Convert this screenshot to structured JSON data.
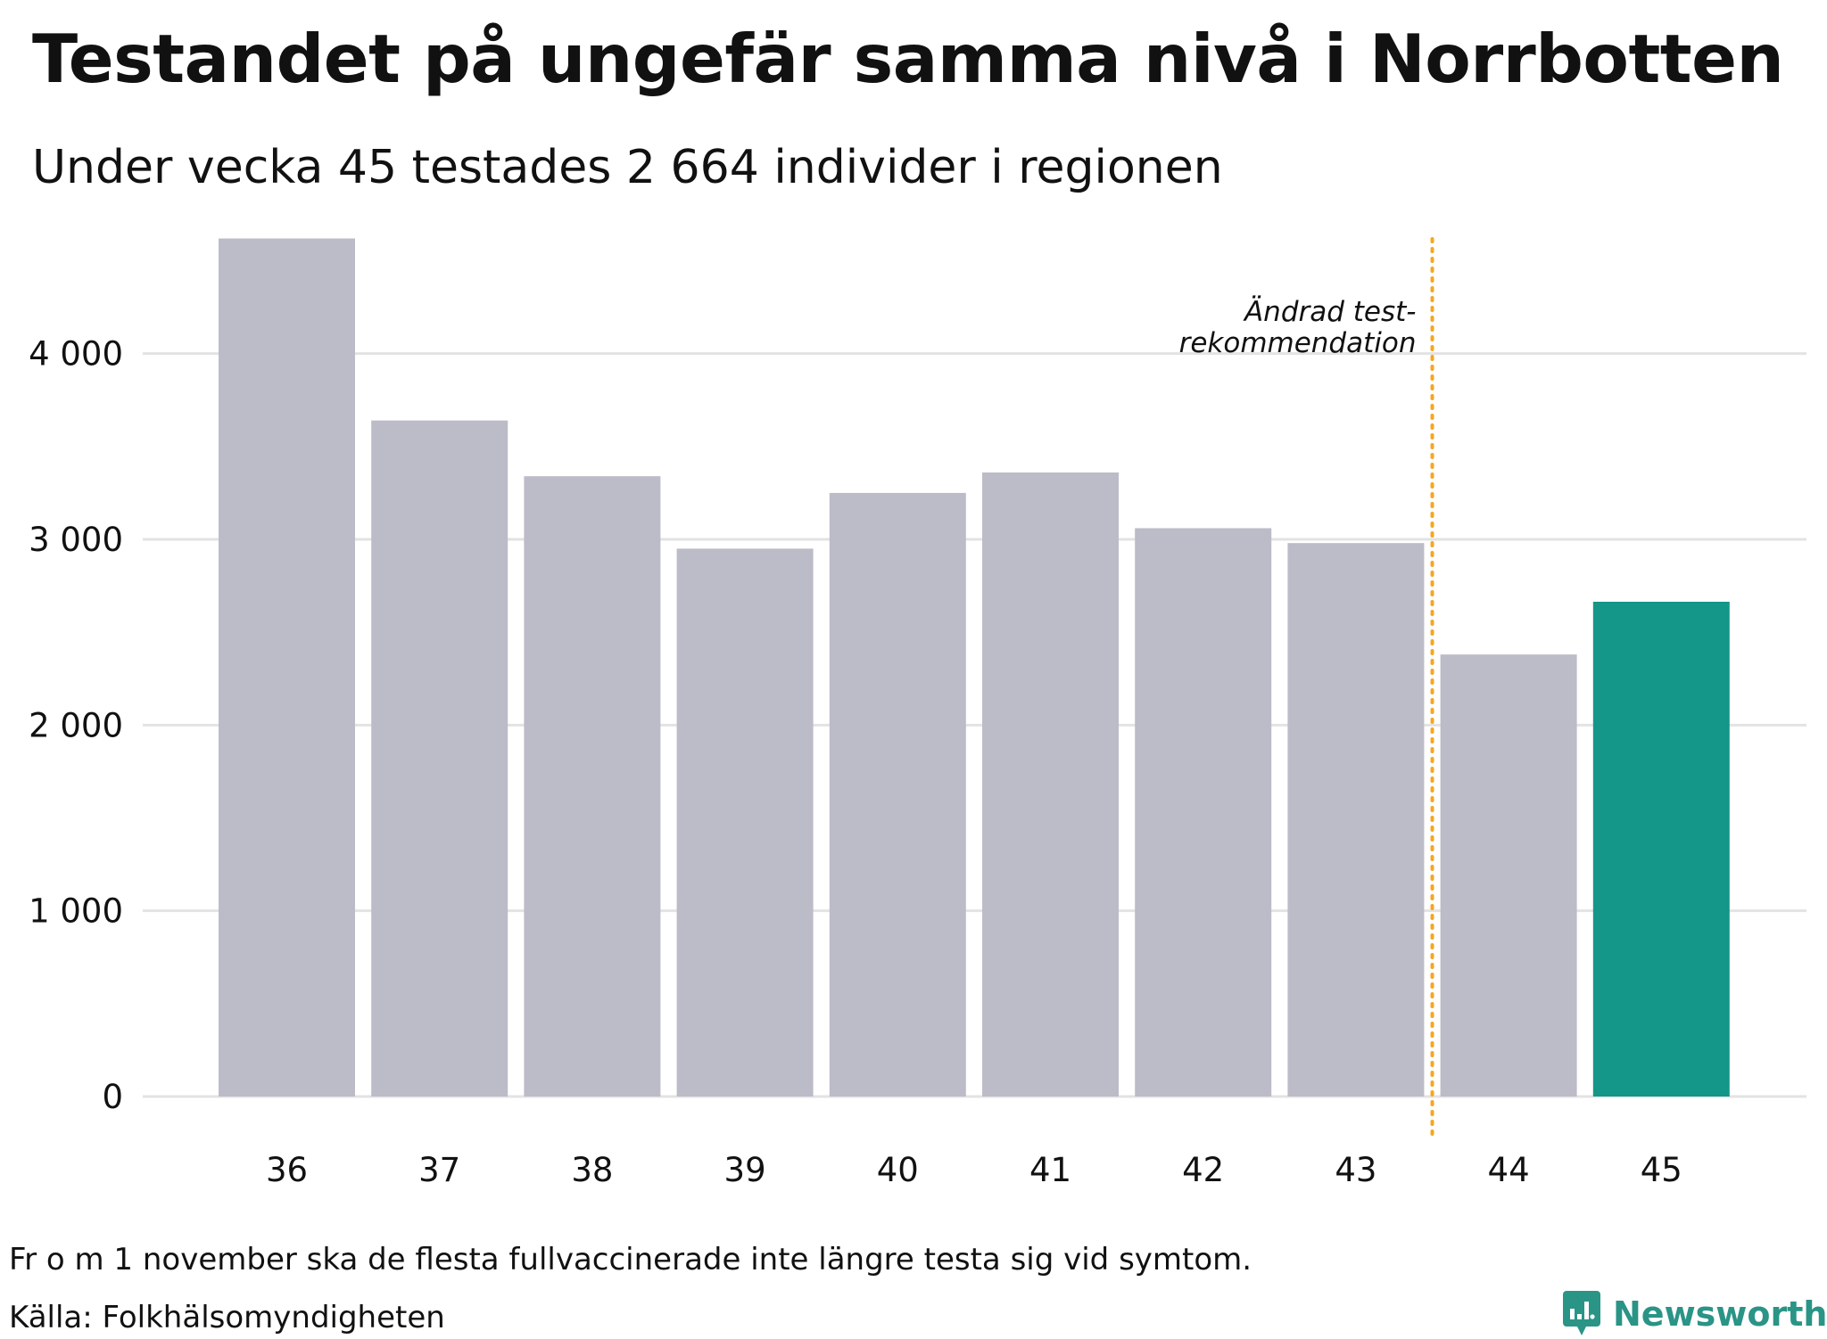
{
  "header": {
    "title": "Testandet på ungefär samma nivå i Norrbotten",
    "subtitle": "Under vecka 45 testades 2 664 individer i regionen"
  },
  "footer": {
    "note": "Fr o m 1 november ska de flesta fullvaccinerade inte längre testa sig vid symtom.",
    "source": "Källa: Folkhälsomyndigheten",
    "brand": "Newsworthy",
    "brand_icon": "newsworthy-logo-icon"
  },
  "colors": {
    "bar_default": "#bcbbc8",
    "bar_highlight": "#149688",
    "reference_line": "#f5a623",
    "gridline": "#e3e3e3",
    "brand": "#2a9486"
  },
  "chart_data": {
    "type": "bar",
    "categories": [
      "36",
      "37",
      "38",
      "39",
      "40",
      "41",
      "42",
      "43",
      "44",
      "45"
    ],
    "values": [
      4620,
      3640,
      3340,
      2950,
      3250,
      3360,
      3060,
      2980,
      2380,
      2664
    ],
    "highlight_category": "45",
    "xlabel": "",
    "ylabel": "",
    "ylim": [
      0,
      4800
    ],
    "yticks": [
      0,
      1000,
      2000,
      3000,
      4000
    ],
    "ytick_labels": [
      "0",
      "1 000",
      "2 000",
      "3 000",
      "4 000"
    ],
    "grid": true,
    "reference_line": {
      "between": [
        "43",
        "44"
      ],
      "style": "dotted",
      "label_lines": [
        "Ändrad test-",
        "rekommendation"
      ]
    }
  }
}
